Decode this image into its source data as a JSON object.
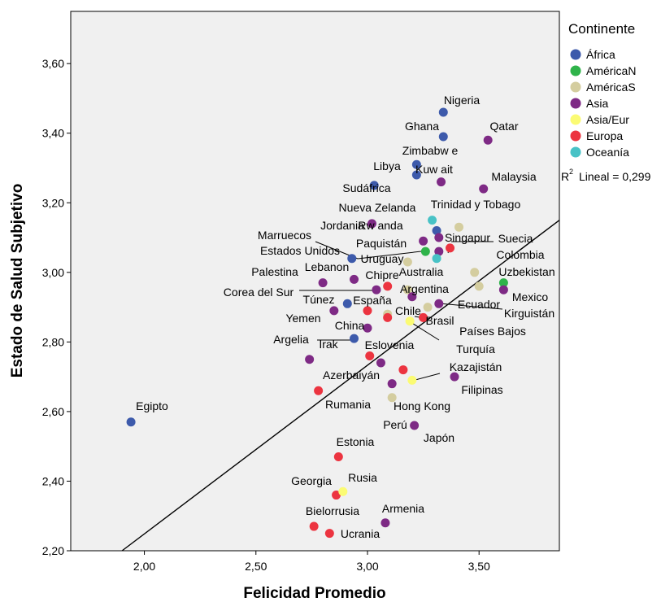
{
  "chart_data": {
    "type": "scatter",
    "xlabel": "Felicidad Promedio",
    "ylabel": "Estado de Salud Subjetivo",
    "xlim": [
      1.67,
      3.86
    ],
    "ylim": [
      2.2,
      3.75
    ],
    "x_ticks": [
      "2,00",
      "2,50",
      "3,00",
      "3,50"
    ],
    "y_ticks": [
      "2,20",
      "2,40",
      "2,60",
      "2,80",
      "3,00",
      "3,20",
      "3,40",
      "3,60"
    ],
    "x_tick_values": [
      2.0,
      2.5,
      3.0,
      3.5
    ],
    "y_tick_values": [
      2.2,
      2.4,
      2.6,
      2.8,
      3.0,
      3.2,
      3.4,
      3.6
    ],
    "background": "#f0f0f0",
    "grid": false,
    "legend_title": "Continente",
    "legend_position": "right",
    "groups": [
      {
        "name": "África",
        "color": "#3d5aab"
      },
      {
        "name": "AméricaN",
        "color": "#2fb34a"
      },
      {
        "name": "AméricaS",
        "color": "#d4cd9f"
      },
      {
        "name": "Asia",
        "color": "#7e2a85"
      },
      {
        "name": "Asia/Eur",
        "color": "#fbfb73"
      },
      {
        "name": "Europa",
        "color": "#ec3440"
      },
      {
        "name": "Oceanía",
        "color": "#48c2c6"
      }
    ],
    "fit_line": {
      "label": "R² Lineal = 0,299",
      "r2_text": "Lineal = 0,299",
      "x": [
        1.9,
        3.86
      ],
      "y": [
        2.2,
        3.15
      ]
    },
    "points": [
      {
        "label": "Nigeria",
        "x": 3.34,
        "y": 3.46,
        "group": "África"
      },
      {
        "label": "Ghana",
        "x": 3.34,
        "y": 3.39,
        "group": "África"
      },
      {
        "label": "Qatar",
        "x": 3.54,
        "y": 3.38,
        "group": "Asia"
      },
      {
        "label": "Zimbabw e",
        "x": 3.22,
        "y": 3.31,
        "group": "África"
      },
      {
        "label": "Libya",
        "x": 3.22,
        "y": 3.28,
        "group": "África"
      },
      {
        "label": "Kuw ait",
        "x": 3.33,
        "y": 3.26,
        "group": "Asia"
      },
      {
        "label": "Malaysia",
        "x": 3.52,
        "y": 3.24,
        "group": "Asia"
      },
      {
        "label": "Sudáfrica",
        "x": 3.03,
        "y": 3.25,
        "group": "África"
      },
      {
        "label": "Nueva Zelanda",
        "x": 3.29,
        "y": 3.15,
        "group": "Oceanía"
      },
      {
        "label": "Trinidad y Tobago",
        "x": 3.41,
        "y": 3.13,
        "group": "AméricaS"
      },
      {
        "label": "Jordania",
        "x": 3.02,
        "y": 3.14,
        "group": "Asia"
      },
      {
        "label": "Rw anda",
        "x": 3.31,
        "y": 3.12,
        "group": "África"
      },
      {
        "label": "Singapur",
        "x": 3.32,
        "y": 3.1,
        "group": "Asia"
      },
      {
        "label": "Suecia",
        "x": 3.37,
        "y": 3.07,
        "group": "Europa"
      },
      {
        "label": "Marruecos",
        "x": 3.32,
        "y": 3.06,
        "group": "Asia"
      },
      {
        "label": "Paquistán",
        "x": 3.25,
        "y": 3.09,
        "group": "Asia"
      },
      {
        "label": "Estados Unidos",
        "x": 3.26,
        "y": 3.06,
        "group": "AméricaN"
      },
      {
        "label": "Colombia",
        "x": 3.31,
        "y": 3.04,
        "group": "Oceanía"
      },
      {
        "label": "Uruguay",
        "x": 3.18,
        "y": 3.03,
        "group": "AméricaS"
      },
      {
        "label": "Australia",
        "x": 2.93,
        "y": 3.04,
        "group": "África"
      },
      {
        "label": "Uzbekistan",
        "x": 3.61,
        "y": 2.97,
        "group": "AméricaN"
      },
      {
        "label": "Lebanon",
        "x": 3.48,
        "y": 3.0,
        "group": "AméricaS"
      },
      {
        "label": "Palestina",
        "x": 2.8,
        "y": 2.97,
        "group": "Asia"
      },
      {
        "label": "Chipre",
        "x": 2.94,
        "y": 2.98,
        "group": "Asia"
      },
      {
        "label": "Corea del Sur",
        "x": 3.09,
        "y": 2.96,
        "group": "Europa"
      },
      {
        "label": "Argentina",
        "x": 3.04,
        "y": 2.95,
        "group": "Asia"
      },
      {
        "label": "Argentina",
        "x": 3.18,
        "y": 2.95,
        "group": "AméricaS"
      },
      {
        "label": "Mexico",
        "x": 3.5,
        "y": 2.96,
        "group": "AméricaS"
      },
      {
        "label": "Mexico",
        "x": 3.61,
        "y": 2.95,
        "group": "Asia"
      },
      {
        "label": "Túnez",
        "x": 2.91,
        "y": 2.91,
        "group": "África"
      },
      {
        "label": "España",
        "x": 3.2,
        "y": 2.93,
        "group": "Asia"
      },
      {
        "label": "Ecuador",
        "x": 3.32,
        "y": 2.91,
        "group": "Asia"
      },
      {
        "label": "Kirguistán",
        "x": 3.27,
        "y": 2.9,
        "group": "AméricaS"
      },
      {
        "label": "Túnez",
        "x": 2.85,
        "y": 2.89,
        "group": "Asia"
      },
      {
        "label": "España",
        "x": 3.0,
        "y": 2.89,
        "group": "Europa"
      },
      {
        "label": "Chile",
        "x": 3.09,
        "y": 2.88,
        "group": "AméricaS"
      },
      {
        "label": "Brasil",
        "x": 3.09,
        "y": 2.87,
        "group": "Europa"
      },
      {
        "label": "Yemen",
        "x": 3.25,
        "y": 2.87,
        "group": "Europa"
      },
      {
        "label": "Países Bajos",
        "x": 3.19,
        "y": 2.86,
        "group": "Asia/Eur"
      },
      {
        "label": "China",
        "x": 3.0,
        "y": 2.84,
        "group": "Asia"
      },
      {
        "label": "Argelia",
        "x": 2.94,
        "y": 2.81,
        "group": "África"
      },
      {
        "label": "Irak",
        "x": 2.74,
        "y": 2.75,
        "group": "Asia"
      },
      {
        "label": "Eslovenia",
        "x": 3.01,
        "y": 2.76,
        "group": "Europa"
      },
      {
        "label": "Eslovenia",
        "x": 3.06,
        "y": 2.74,
        "group": "Asia"
      },
      {
        "label": "Turquía",
        "x": 3.16,
        "y": 2.72,
        "group": "Europa"
      },
      {
        "label": "Kazajistán",
        "x": 3.2,
        "y": 2.69,
        "group": "Asia/Eur"
      },
      {
        "label": "Filipinas",
        "x": 3.39,
        "y": 2.7,
        "group": "Asia"
      },
      {
        "label": "Azerbaiyán",
        "x": 3.11,
        "y": 2.68,
        "group": "Asia"
      },
      {
        "label": "Rumania",
        "x": 2.78,
        "y": 2.66,
        "group": "Europa"
      },
      {
        "label": "Hong Kong",
        "x": 3.11,
        "y": 2.64,
        "group": "AméricaS"
      },
      {
        "label": "Egipto",
        "x": 1.94,
        "y": 2.57,
        "group": "África"
      },
      {
        "label": "Perú",
        "x": 3.21,
        "y": 2.56,
        "group": "Asia"
      },
      {
        "label": "Estonia",
        "x": 2.87,
        "y": 2.47,
        "group": "Europa"
      },
      {
        "label": "Georgia",
        "x": 2.86,
        "y": 2.36,
        "group": "Europa"
      },
      {
        "label": "Rusia",
        "x": 2.89,
        "y": 2.37,
        "group": "Asia/Eur"
      },
      {
        "label": "Armenia",
        "x": 3.08,
        "y": 2.28,
        "group": "Asia"
      },
      {
        "label": "Bielorrusia",
        "x": 2.76,
        "y": 2.27,
        "group": "Europa"
      },
      {
        "label": "Ucrania",
        "x": 2.83,
        "y": 2.25,
        "group": "Europa"
      }
    ],
    "annotations": [
      {
        "text": "Nigeria",
        "anchor": 0
      },
      {
        "text": "Ghana",
        "anchor": 1
      },
      {
        "text": "Qatar",
        "anchor": 2
      },
      {
        "text": "Zimbabw e",
        "anchor": 3
      },
      {
        "text": "Libya",
        "anchor": 4
      },
      {
        "text": "Kuw ait",
        "anchor": 5
      },
      {
        "text": "Malaysia",
        "anchor": 6
      },
      {
        "text": "Sudáfrica",
        "anchor": 7
      },
      {
        "text": "Nueva Zelanda",
        "anchor": 10
      },
      {
        "text": "Trinidad y Tobago",
        "anchor": 8
      },
      {
        "text": "Jordania",
        "anchor": 10
      },
      {
        "text": "Rw anda",
        "anchor": 11
      },
      {
        "text": "Singapur",
        "anchor": 12
      },
      {
        "text": "Suecia",
        "anchor": 13
      },
      {
        "text": "Marruecos",
        "anchor": 19
      },
      {
        "text": "Paquistán",
        "anchor": 15
      },
      {
        "text": "Estados Unidos",
        "anchor": 16
      },
      {
        "text": "Colombia",
        "anchor": 21
      },
      {
        "text": "Uruguay",
        "anchor": 18
      },
      {
        "text": "Australia",
        "anchor": 21
      },
      {
        "text": "Uzbekistan",
        "anchor": 20
      },
      {
        "text": "Lebanon",
        "anchor": 23
      },
      {
        "text": "Palestina",
        "anchor": 22
      },
      {
        "text": "Chipre",
        "anchor": 23
      },
      {
        "text": "Corea del Sur",
        "anchor": 24
      },
      {
        "text": "Argentina",
        "anchor": 26
      },
      {
        "text": "Mexico",
        "anchor": 28
      },
      {
        "text": "Túnez",
        "anchor": 29
      },
      {
        "text": "España",
        "anchor": 34
      },
      {
        "text": "Ecuador",
        "anchor": 31
      },
      {
        "text": "Kirguistán",
        "anchor": 31
      },
      {
        "text": "Chile",
        "anchor": 35
      },
      {
        "text": "Brasil",
        "anchor": 37
      },
      {
        "text": "Yemen",
        "anchor": 34
      },
      {
        "text": "Países Bajos",
        "anchor": 37
      },
      {
        "text": "Turquía",
        "anchor": 38
      },
      {
        "text": "China",
        "anchor": 39
      },
      {
        "text": "Argelia",
        "anchor": 40
      },
      {
        "text": "Irak",
        "anchor": 40
      },
      {
        "text": "Eslovenia",
        "anchor": 42
      },
      {
        "text": "Kazajistán",
        "anchor": 45
      },
      {
        "text": "Azerbaiyán",
        "anchor": 47
      },
      {
        "text": "Filipinas",
        "anchor": 46
      },
      {
        "text": "Rumania",
        "anchor": 48
      },
      {
        "text": "Hong Kong",
        "anchor": 49
      },
      {
        "text": "Egipto",
        "anchor": 50
      },
      {
        "text": "Perú",
        "anchor": 51
      },
      {
        "text": "Japón",
        "anchor": 51
      },
      {
        "text": "Estonia",
        "anchor": 52
      },
      {
        "text": "Georgia",
        "anchor": 53
      },
      {
        "text": "Rusia",
        "anchor": 54
      },
      {
        "text": "Armenia",
        "anchor": 55
      },
      {
        "text": "Bielorrusia",
        "anchor": 56
      },
      {
        "text": "Ucrania",
        "anchor": 57
      }
    ]
  }
}
